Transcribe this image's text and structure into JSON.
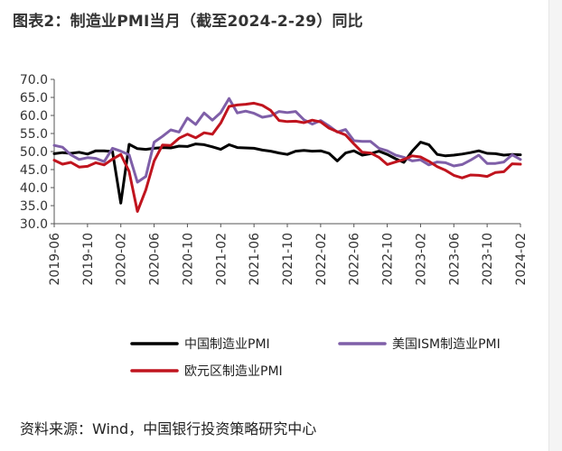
{
  "title": "图表2：制造业PMI当月（截至2024-2-29）同比",
  "source": "资料来源：Wind，中国银行投资策略研究中心",
  "chart_data": {
    "type": "line",
    "xlabel": "",
    "ylabel": "",
    "ylim": [
      30,
      70
    ],
    "y_ticks": [
      "70.0",
      "65.0",
      "60.0",
      "55.0",
      "50.0",
      "45.0",
      "40.0",
      "35.0",
      "30.0"
    ],
    "x_ticks": [
      "2019-06",
      "2019-10",
      "2020-02",
      "2020-06",
      "2020-10",
      "2021-02",
      "2021-06",
      "2021-10",
      "2022-02",
      "2022-06",
      "2022-10",
      "2023-02",
      "2023-06",
      "2023-10",
      "2024-02"
    ],
    "x": [
      "2019-06",
      "2019-07",
      "2019-08",
      "2019-09",
      "2019-10",
      "2019-11",
      "2019-12",
      "2020-01",
      "2020-02",
      "2020-03",
      "2020-04",
      "2020-05",
      "2020-06",
      "2020-07",
      "2020-08",
      "2020-09",
      "2020-10",
      "2020-11",
      "2020-12",
      "2021-01",
      "2021-02",
      "2021-03",
      "2021-04",
      "2021-05",
      "2021-06",
      "2021-07",
      "2021-08",
      "2021-09",
      "2021-10",
      "2021-11",
      "2021-12",
      "2022-01",
      "2022-02",
      "2022-03",
      "2022-04",
      "2022-05",
      "2022-06",
      "2022-07",
      "2022-08",
      "2022-09",
      "2022-10",
      "2022-11",
      "2022-12",
      "2023-01",
      "2023-02",
      "2023-03",
      "2023-04",
      "2023-05",
      "2023-06",
      "2023-07",
      "2023-08",
      "2023-09",
      "2023-10",
      "2023-11",
      "2023-12",
      "2024-01",
      "2024-02"
    ],
    "grid": false,
    "legend_position": "bottom",
    "series": [
      {
        "name": "中国制造业PMI",
        "color": "#000000",
        "values": [
          49.4,
          49.7,
          49.5,
          49.8,
          49.3,
          50.2,
          50.2,
          50.0,
          35.7,
          52.0,
          50.8,
          50.6,
          50.9,
          51.1,
          51.0,
          51.5,
          51.4,
          52.1,
          51.9,
          51.3,
          50.6,
          51.9,
          51.1,
          51.0,
          50.9,
          50.4,
          50.1,
          49.6,
          49.2,
          50.1,
          50.3,
          50.1,
          50.2,
          49.5,
          47.4,
          49.6,
          50.2,
          49.0,
          49.4,
          50.1,
          49.2,
          48.0,
          47.0,
          50.1,
          52.6,
          51.9,
          49.2,
          48.8,
          49.0,
          49.3,
          49.7,
          50.2,
          49.5,
          49.4,
          49.0,
          49.2,
          49.1
        ]
      },
      {
        "name": "美国ISM制造业PMI",
        "color": "#7f5fa8",
        "values": [
          51.7,
          51.2,
          49.1,
          47.8,
          48.3,
          48.1,
          47.2,
          50.9,
          50.1,
          49.1,
          41.5,
          43.1,
          52.6,
          54.2,
          56.0,
          55.4,
          59.3,
          57.5,
          60.7,
          58.7,
          60.8,
          64.7,
          60.7,
          61.2,
          60.6,
          59.5,
          59.9,
          61.1,
          60.8,
          61.1,
          58.8,
          57.6,
          58.6,
          57.1,
          55.4,
          56.1,
          53.0,
          52.8,
          52.8,
          50.9,
          50.2,
          49.0,
          48.4,
          47.4,
          47.7,
          46.3,
          47.1,
          46.9,
          46.0,
          46.4,
          47.6,
          49.0,
          46.7,
          46.7,
          47.1,
          49.1,
          47.8
        ]
      },
      {
        "name": "欧元区制造业PMI",
        "color": "#c0141e",
        "values": [
          47.6,
          46.5,
          47.0,
          45.7,
          45.9,
          46.9,
          46.3,
          47.9,
          49.2,
          44.5,
          33.4,
          39.4,
          47.4,
          51.8,
          51.7,
          53.7,
          54.8,
          53.8,
          55.2,
          54.8,
          57.9,
          62.5,
          62.9,
          63.1,
          63.4,
          62.8,
          61.4,
          58.6,
          58.3,
          58.4,
          58.0,
          58.7,
          58.2,
          56.5,
          55.5,
          54.6,
          52.1,
          49.8,
          49.6,
          48.4,
          46.4,
          47.1,
          47.8,
          48.8,
          48.5,
          47.3,
          45.8,
          44.8,
          43.4,
          42.7,
          43.5,
          43.4,
          43.1,
          44.2,
          44.4,
          46.6,
          46.5
        ]
      }
    ]
  }
}
